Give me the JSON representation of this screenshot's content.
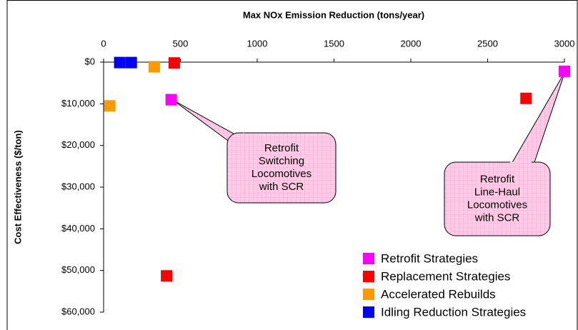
{
  "chart_data": {
    "type": "scatter",
    "x_label": "Max NOx Emission Reduction (tons/year)",
    "y_label": "Cost Effectiveness ($/ton)",
    "xlim": [
      0,
      3000
    ],
    "xticks": [
      0,
      500,
      1000,
      1500,
      2000,
      2500,
      3000
    ],
    "ylim": [
      0,
      60000
    ],
    "y_inverted": true,
    "yticks": [
      {
        "value": 0,
        "label": "$0"
      },
      {
        "value": 10000,
        "label": "$10,000"
      },
      {
        "value": 20000,
        "label": "$20,000"
      },
      {
        "value": 30000,
        "label": "$30,000"
      },
      {
        "value": 40000,
        "label": "$40,000"
      },
      {
        "value": 50000,
        "label": "$50,000"
      },
      {
        "value": 60000,
        "label": "$60,000"
      }
    ],
    "legend": "lower right",
    "series": [
      {
        "name": "Retrofit Strategies",
        "color": "#ff00ff",
        "x": [
          440,
          3000
        ],
        "values": [
          9000,
          2200
        ]
      },
      {
        "name": "Replacement Strategies",
        "color": "#ff0000",
        "x": [
          460,
          2750,
          410
        ],
        "values": [
          200,
          8700,
          51300
        ]
      },
      {
        "name": "Accelerated Rebuilds",
        "color": "#ff9900",
        "x": [
          330,
          40
        ],
        "values": [
          1100,
          10500
        ]
      },
      {
        "name": "Idling Reduction Strategies",
        "color": "#0000ff",
        "x": [
          105,
          180
        ],
        "values": [
          100,
          100
        ]
      }
    ],
    "annotations": [
      {
        "lines": [
          "Retrofit",
          "Switching",
          "Locomotives",
          "with SCR"
        ]
      },
      {
        "lines": [
          "Retrofit",
          "Line-Haul",
          "Locomotives",
          "with SCR"
        ]
      }
    ]
  }
}
